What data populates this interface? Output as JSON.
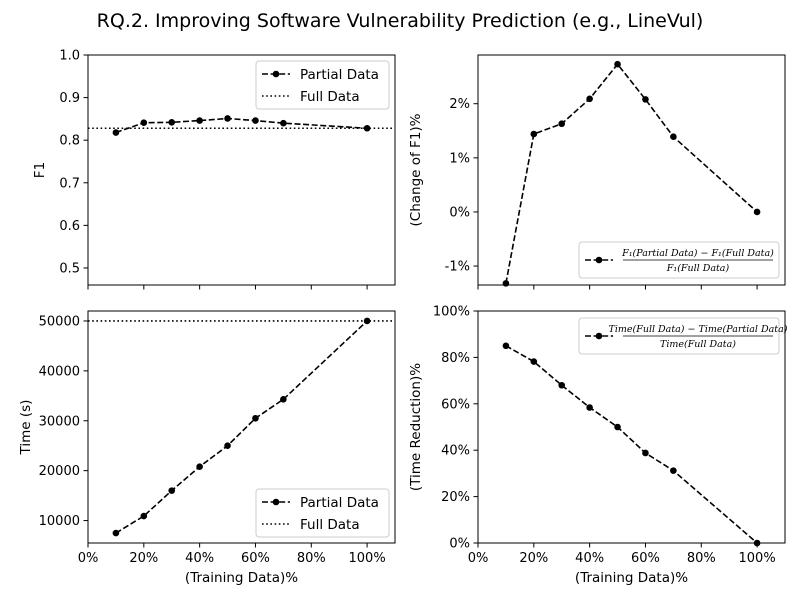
{
  "suptitle": "RQ.2. Improving Software Vulnerability Prediction (e.g., LineVul)",
  "chart_data": [
    {
      "id": "f1",
      "type": "line",
      "xlabel": "",
      "ylabel": "F1",
      "xlim": [
        0,
        110
      ],
      "ylim": [
        0.46,
        1.0
      ],
      "xticks": [
        0,
        20,
        40,
        60,
        80,
        100
      ],
      "xtick_labels": [],
      "yticks": [
        0.5,
        0.6,
        0.7,
        0.8,
        0.9,
        1.0
      ],
      "ytick_labels": [
        "0.5",
        "0.6",
        "0.7",
        "0.8",
        "0.9",
        "1.0"
      ],
      "series": [
        {
          "name": "Partial Data",
          "style": "dashed-marker",
          "x": [
            10,
            20,
            30,
            40,
            50,
            60,
            70,
            100
          ],
          "y": [
            0.818,
            0.841,
            0.842,
            0.846,
            0.851,
            0.846,
            0.84,
            0.828
          ]
        }
      ],
      "hlines": [
        {
          "name": "Full Data",
          "style": "dotted",
          "y": 0.828
        }
      ],
      "legend": "top-right",
      "legend_kind": "plain"
    },
    {
      "id": "f1change",
      "type": "line",
      "xlabel": "",
      "ylabel": "(Change of F1)%",
      "xlim": [
        0,
        110
      ],
      "ylim": [
        -1.35,
        2.9
      ],
      "xticks": [
        0,
        20,
        40,
        60,
        80,
        100
      ],
      "xtick_labels": [],
      "yticks": [
        -1,
        0,
        1,
        2
      ],
      "ytick_labels": [
        "-1%",
        "0%",
        "1%",
        "2%"
      ],
      "series": [
        {
          "name": "F1(Partial Data) − F1(Full Data) / F1(Full Data)",
          "style": "dashed-marker",
          "x": [
            10,
            20,
            30,
            40,
            50,
            60,
            70,
            100
          ],
          "y": [
            -1.32,
            1.44,
            1.63,
            2.09,
            2.73,
            2.08,
            1.39,
            0.0
          ]
        }
      ],
      "hlines": [],
      "legend": "bottom-right",
      "legend_kind": "frac",
      "legend_num": "F₁(Partial Data) − F₁(Full Data)",
      "legend_den": "F₁(Full Data)"
    },
    {
      "id": "time",
      "type": "line",
      "xlabel": "(Training Data)%",
      "ylabel": "Time (s)",
      "xlim": [
        0,
        110
      ],
      "ylim": [
        5500,
        52000
      ],
      "xticks": [
        0,
        20,
        40,
        60,
        80,
        100
      ],
      "xtick_labels": [
        "0%",
        "20%",
        "40%",
        "60%",
        "80%",
        "100%"
      ],
      "yticks": [
        10000,
        20000,
        30000,
        40000,
        50000
      ],
      "ytick_labels": [
        "10000",
        "20000",
        "30000",
        "40000",
        "50000"
      ],
      "series": [
        {
          "name": "Partial Data",
          "style": "dashed-marker",
          "x": [
            10,
            20,
            30,
            40,
            50,
            60,
            70,
            100
          ],
          "y": [
            7500,
            10900,
            16000,
            20800,
            25000,
            30500,
            34300,
            50000
          ]
        }
      ],
      "hlines": [
        {
          "name": "Full Data",
          "style": "dotted",
          "y": 50000
        }
      ],
      "legend": "bottom-right",
      "legend_kind": "plain"
    },
    {
      "id": "timered",
      "type": "line",
      "xlabel": "(Training Data)%",
      "ylabel": "(Time Reduction)%",
      "xlim": [
        0,
        110
      ],
      "ylim": [
        0,
        100
      ],
      "xticks": [
        0,
        20,
        40,
        60,
        80,
        100
      ],
      "xtick_labels": [
        "0%",
        "20%",
        "40%",
        "60%",
        "80%",
        "100%"
      ],
      "yticks": [
        0,
        20,
        40,
        60,
        80,
        100
      ],
      "ytick_labels": [
        "0%",
        "20%",
        "40%",
        "60%",
        "80%",
        "100%"
      ],
      "series": [
        {
          "name": "Time(Full Data) − Time(Partial Data) / Time(Full Data)",
          "style": "dashed-marker",
          "x": [
            10,
            20,
            30,
            40,
            50,
            60,
            70,
            100
          ],
          "y": [
            85,
            78.2,
            68,
            58.4,
            50,
            38.8,
            31.2,
            0
          ]
        }
      ],
      "hlines": [],
      "legend": "top-right",
      "legend_kind": "frac",
      "legend_num": "Time(Full Data) − Time(Partial Data)",
      "legend_den": "Time(Full Data)"
    }
  ]
}
